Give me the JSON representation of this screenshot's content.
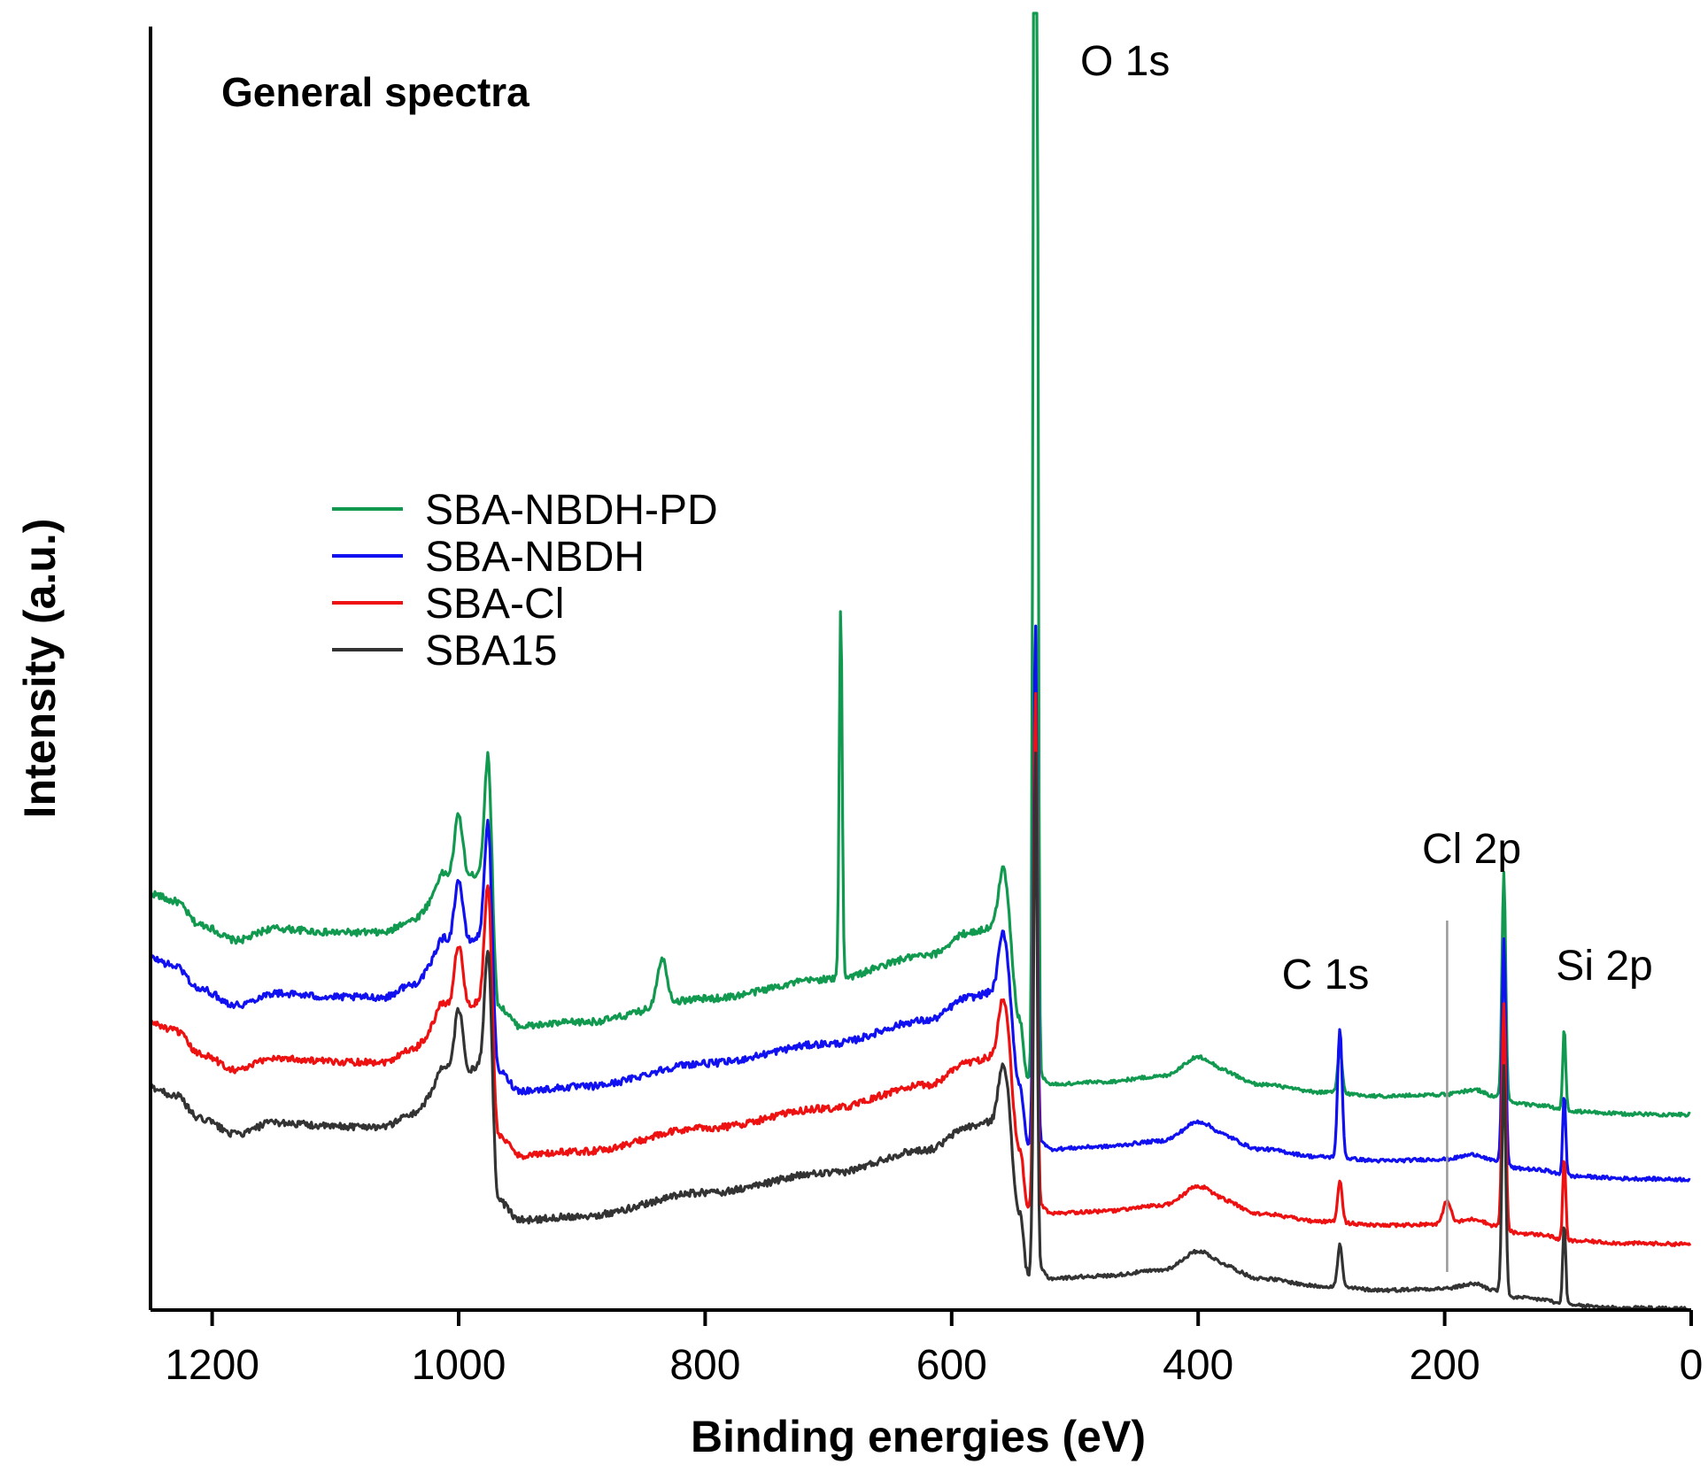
{
  "chart_data": {
    "type": "line",
    "title": "General spectra",
    "xlabel": "Binding energies (eV)",
    "ylabel": "Intensity (a.u.)",
    "xlim": [
      1250,
      0
    ],
    "xticks": [
      1200,
      1000,
      800,
      600,
      400,
      200,
      0
    ],
    "xtick_labels": [
      "1200",
      "1000",
      "800",
      "600",
      "400",
      "200",
      "0"
    ],
    "y_ticks_shown": false,
    "legend_position": "center-left",
    "reference_line": {
      "x": 198,
      "label": "Cl 2p"
    },
    "annotations": [
      {
        "text": "O 1s",
        "x": 532
      },
      {
        "text": "C 1s",
        "x": 285
      },
      {
        "text": "Cl 2p",
        "x": 198
      },
      {
        "text": "Si 2p",
        "x": 103
      }
    ],
    "series": [
      {
        "name": "SBA-NBDH-PD",
        "color": "#119A4F",
        "offset": 3,
        "extra_peaks": [
          [
            690,
            4.8,
            1.2
          ],
          [
            835,
            0.6,
            4
          ]
        ],
        "o1s_scale": 4.6
      },
      {
        "name": "SBA-NBDH",
        "color": "#1010F0",
        "offset": 2,
        "extra_peaks": [
          [
            285,
            1.1,
            1.8
          ]
        ],
        "o1s_scale": 1.0
      },
      {
        "name": "SBA-Cl",
        "color": "#EE1111",
        "offset": 1,
        "extra_peaks": [
          [
            198,
            0.3,
            3
          ]
        ],
        "o1s_scale": 1.0
      },
      {
        "name": "SBA15",
        "color": "#333333",
        "offset": 0,
        "extra_peaks": [],
        "o1s_scale": 1.0
      }
    ]
  }
}
